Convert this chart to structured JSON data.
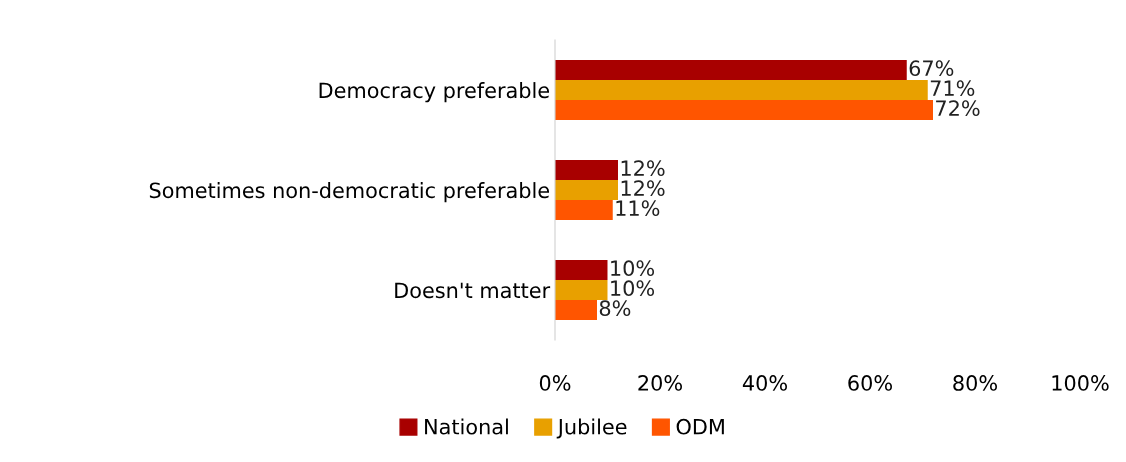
{
  "chart_data": {
    "type": "bar",
    "orientation": "horizontal",
    "categories": [
      "Democracy preferable",
      "Sometimes non-democratic preferable",
      "Doesn't matter"
    ],
    "series": [
      {
        "name": "National",
        "color": "#a80000",
        "values": [
          67,
          12,
          10
        ],
        "value_labels": [
          "67%",
          "12%",
          "10%"
        ]
      },
      {
        "name": "Jubilee",
        "color": "#e8a000",
        "values": [
          71,
          12,
          10
        ],
        "value_labels": [
          "71%",
          "12%",
          "10%"
        ]
      },
      {
        "name": "ODM",
        "color": "#ff5500",
        "values": [
          72,
          11,
          8
        ],
        "value_labels": [
          "72%",
          "11%",
          "8%"
        ]
      }
    ],
    "xlim": [
      0,
      100
    ],
    "xticks": [
      {
        "value": 0,
        "label": "0%"
      },
      {
        "value": 20,
        "label": "20%"
      },
      {
        "value": 40,
        "label": "40%"
      },
      {
        "value": 60,
        "label": "60%"
      },
      {
        "value": 80,
        "label": "80%"
      },
      {
        "value": 100,
        "label": "100%"
      }
    ],
    "grid": false,
    "legend": "bottom"
  }
}
